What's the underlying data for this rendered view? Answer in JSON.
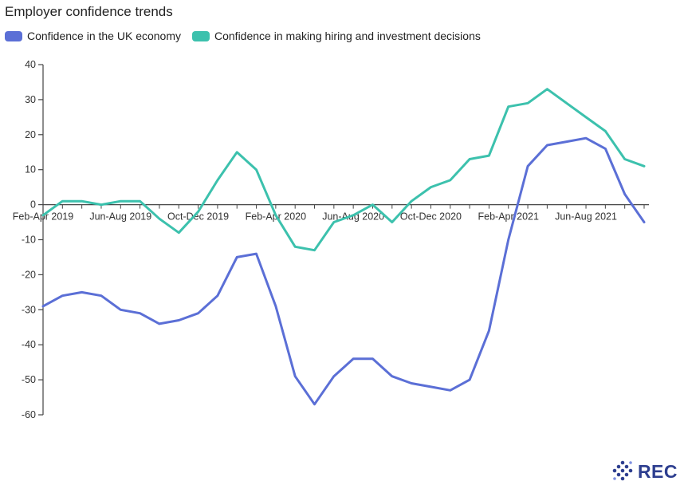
{
  "chart_data": {
    "type": "line",
    "title": "Employer confidence trends",
    "xlabel": "",
    "ylabel": "",
    "ylim": [
      -60,
      40
    ],
    "yticks": [
      40,
      30,
      20,
      10,
      0,
      -10,
      -20,
      -30,
      -40,
      -50,
      -60
    ],
    "x_tick_labels": [
      {
        "index": 0,
        "label": "Feb-Apr 2019"
      },
      {
        "index": 4,
        "label": "Jun-Aug 2019"
      },
      {
        "index": 8,
        "label": "Oct-Dec 2019"
      },
      {
        "index": 12,
        "label": "Feb-Apr 2020"
      },
      {
        "index": 16,
        "label": "Jun-Aug 2020"
      },
      {
        "index": 20,
        "label": "Oct-Dec 2020"
      },
      {
        "index": 24,
        "label": "Feb-Apr 2021"
      },
      {
        "index": 28,
        "label": "Jun-Aug 2021"
      }
    ],
    "point_count": 32,
    "legend_position": "top-left",
    "grid": false,
    "series": [
      {
        "name": "Confidence in the UK economy",
        "color": "#5b6fd6",
        "values": [
          -29,
          -26,
          -25,
          -26,
          -30,
          -31,
          -34,
          -33,
          -31,
          -26,
          -15,
          -14,
          -29,
          -49,
          -57,
          -49,
          -44,
          -44,
          -49,
          -51,
          -52,
          -53,
          -50,
          -36,
          -10,
          11,
          17,
          18,
          19,
          16,
          3,
          -5
        ]
      },
      {
        "name": "Confidence in making hiring and investment decisions",
        "color": "#3cc1ad",
        "values": [
          -3,
          1,
          1,
          0,
          1,
          1,
          -4,
          -8,
          -2,
          7,
          15,
          10,
          -3,
          -12,
          -13,
          -5,
          -3,
          0,
          -5,
          1,
          5,
          7,
          13,
          14,
          28,
          29,
          33,
          29,
          25,
          21,
          13,
          11
        ]
      }
    ]
  },
  "logo": {
    "text": "REC",
    "icon": "rec-diamond-dots-icon",
    "color": "#2d3e8f"
  }
}
